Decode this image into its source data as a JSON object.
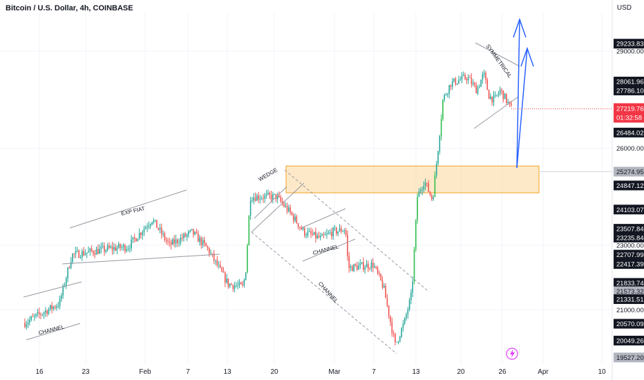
{
  "header": {
    "title": "Bitcoin / U.S. Dollar, 4h, COINBASE",
    "currency": "USD"
  },
  "colors": {
    "up": "#26a69a",
    "up_bright": "#2ebd4e",
    "down": "#ef5350",
    "grid": "#f0f3fa",
    "trendline": "#9598a1",
    "zone_fill": "#fcd79a",
    "zone_border": "#f7a21b",
    "arrow": "#2962ff",
    "current_price": "#f23645",
    "label_bg": "#131722",
    "label_gray": "#b2b5be"
  },
  "chart_data": {
    "type": "candlestick",
    "title": "Bitcoin / U.S. Dollar, 4h, COINBASE",
    "ylim": [
      19300,
      30200
    ],
    "y_ticks": [
      21000,
      23000,
      26000,
      29000
    ],
    "y_tick_labels": [
      "21000.00",
      "23000.00",
      "26000.00",
      "29000.00"
    ],
    "x_tick_labels": [
      "16",
      "23",
      "Feb",
      "7",
      "13",
      "20",
      "Mar",
      "7",
      "13",
      "20",
      "26",
      "Apr",
      "10"
    ],
    "price_labels": [
      {
        "text": "29233.83",
        "value": 29233.83,
        "style": "dark"
      },
      {
        "text": "28061.96",
        "value": 28061.96,
        "style": "dark"
      },
      {
        "text": "27786.10",
        "value": 27786.1,
        "style": "dark"
      },
      {
        "text": "27219.76",
        "value": 27219.76,
        "style": "current"
      },
      {
        "text": "26484.02",
        "value": 26484.02,
        "style": "dark"
      },
      {
        "text": "25274.95",
        "value": 25274.95,
        "style": "gray"
      },
      {
        "text": "24847.12",
        "value": 24847.12,
        "style": "dark"
      },
      {
        "text": "24103.07",
        "value": 24103.07,
        "style": "dark"
      },
      {
        "text": "23507.84",
        "value": 23507.84,
        "style": "dark"
      },
      {
        "text": "23235.84",
        "value": 23235.84,
        "style": "dark"
      },
      {
        "text": "22707.99",
        "value": 22707.99,
        "style": "dark"
      },
      {
        "text": "22417.39",
        "value": 22417.39,
        "style": "dark"
      },
      {
        "text": "21833.74",
        "value": 21833.74,
        "style": "dark"
      },
      {
        "text": "21573.32",
        "value": 21573.32,
        "style": "gray"
      },
      {
        "text": "21331.51",
        "value": 21331.51,
        "style": "dark"
      },
      {
        "text": "20570.09",
        "value": 20570.09,
        "style": "dark"
      },
      {
        "text": "20049.26",
        "value": 20049.26,
        "style": "dark"
      },
      {
        "text": "19527.20",
        "value": 19527.2,
        "style": "gray"
      }
    ],
    "current_price": {
      "value": "27219.76",
      "countdown": "01:32:58"
    },
    "annotations": [
      "CHANNEL",
      "EXP FIAT",
      "WEDGE",
      "CHANNEL",
      "CHANNEL",
      "SYMMETRICAL"
    ],
    "anchors": [
      {
        "label": "16 Jan",
        "close": 20600
      },
      {
        "label": "19 Jan",
        "close": 21200
      },
      {
        "label": "21 Jan",
        "close": 22700
      },
      {
        "label": "25 Jan",
        "close": 22900
      },
      {
        "label": "27 Jan",
        "close": 22950
      },
      {
        "label": "29 Jan",
        "close": 23800
      },
      {
        "label": "31 Jan",
        "close": 23000
      },
      {
        "label": "3 Feb",
        "close": 23400
      },
      {
        "label": "6 Feb",
        "close": 22900
      },
      {
        "label": "9 Feb",
        "close": 21800
      },
      {
        "label": "12 Feb",
        "close": 21700
      },
      {
        "label": "15 Feb",
        "close": 22300
      },
      {
        "label": "16 Feb",
        "close": 24500
      },
      {
        "label": "18 Feb",
        "close": 24500
      },
      {
        "label": "21 Feb",
        "close": 24500
      },
      {
        "label": "22 Feb",
        "close": 24000
      },
      {
        "label": "24 Feb",
        "close": 23400
      },
      {
        "label": "26 Feb",
        "close": 23200
      },
      {
        "label": "28 Feb",
        "close": 23400
      },
      {
        "label": "1 Mar",
        "close": 23500
      },
      {
        "label": "2 Mar",
        "close": 22300
      },
      {
        "label": "5 Mar",
        "close": 22400
      },
      {
        "label": "8 Mar",
        "close": 21700
      },
      {
        "label": "10 Mar",
        "close": 19900
      },
      {
        "label": "11 Mar",
        "close": 20600
      },
      {
        "label": "13 Mar",
        "close": 21500
      },
      {
        "label": "14 Mar",
        "close": 24500
      },
      {
        "label": "15 Mar",
        "close": 25000
      },
      {
        "label": "16 Mar",
        "close": 24400
      },
      {
        "label": "17 Mar",
        "close": 26000
      },
      {
        "label": "18 Mar",
        "close": 27500
      },
      {
        "label": "19 Mar",
        "close": 28000
      },
      {
        "label": "21 Mar",
        "close": 28200
      },
      {
        "label": "22 Mar",
        "close": 27800
      },
      {
        "label": "23 Mar",
        "close": 28300
      },
      {
        "label": "24 Mar",
        "close": 27600
      },
      {
        "label": "25 Mar",
        "close": 27500
      },
      {
        "label": "26 Mar",
        "close": 27800
      },
      {
        "label": "27 Mar",
        "close": 27220
      }
    ]
  }
}
